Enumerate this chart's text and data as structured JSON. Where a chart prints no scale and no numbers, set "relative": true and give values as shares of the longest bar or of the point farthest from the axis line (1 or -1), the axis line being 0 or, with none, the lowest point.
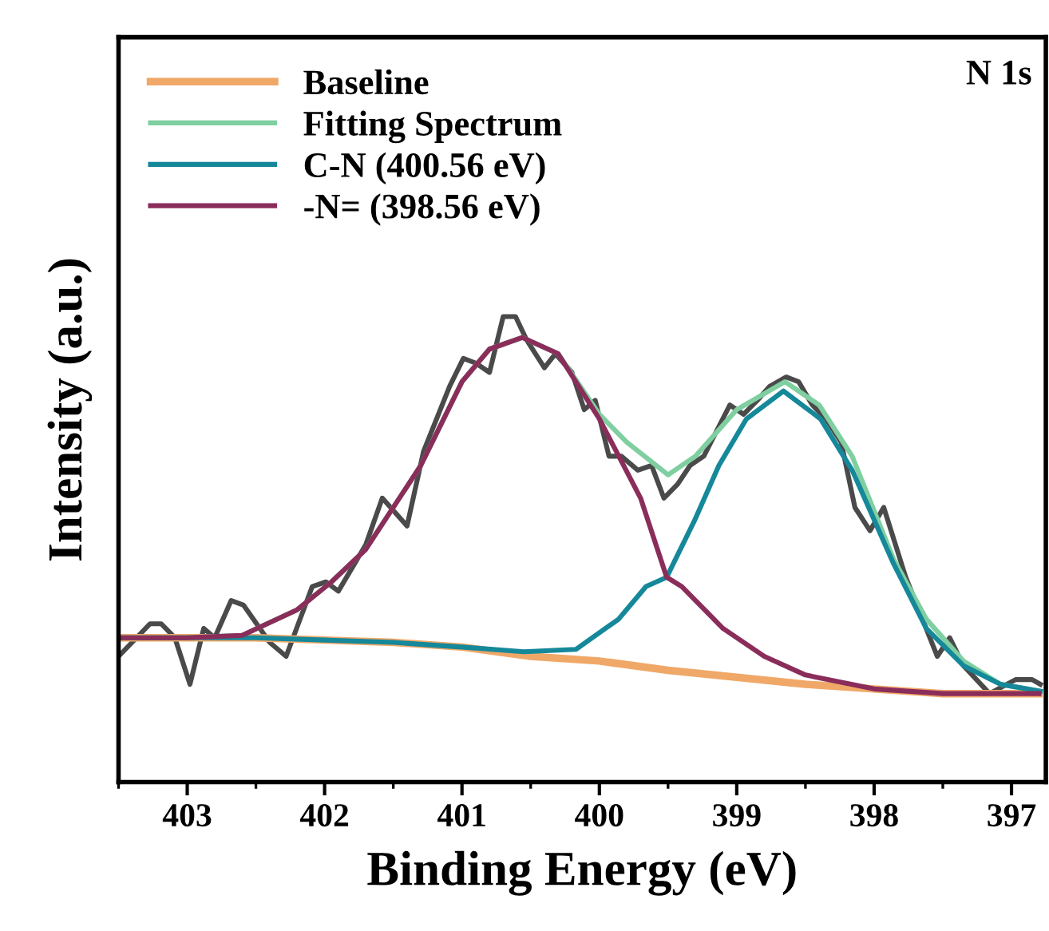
{
  "chart_data": {
    "type": "line",
    "relative": true,
    "xlabel": "Binding Energy (eV)",
    "ylabel": "Intensity (a.u.)",
    "xlim": [
      403.5,
      396.75
    ],
    "xticks": [
      403,
      402,
      401,
      400,
      399,
      398,
      397
    ],
    "legend": "top left",
    "grid": false,
    "annotations": [
      "N 1s"
    ],
    "series": [
      {
        "color": "#4a4a4a",
        "x": [
          403.5,
          403.27,
          403.19,
          403.09,
          402.98,
          402.88,
          402.8,
          402.68,
          402.59,
          402.4,
          402.28,
          402.09,
          401.99,
          401.9,
          401.7,
          401.58,
          401.4,
          401.28,
          401.09,
          400.99,
          400.9,
          400.8,
          400.7,
          400.61,
          400.53,
          400.4,
          400.32,
          400.2,
          400.11,
          400.03,
          399.93,
          399.84,
          399.72,
          399.62,
          399.53,
          399.43,
          399.34,
          399.24,
          399.05,
          398.95,
          398.85,
          398.76,
          398.64,
          398.55,
          398.45,
          398.35,
          398.24,
          398.14,
          398.03,
          397.93,
          397.77,
          397.54,
          397.45,
          397.35,
          397.16,
          396.97,
          396.85,
          396.79
        ],
        "values": [
          0.27,
          0.34,
          0.34,
          0.31,
          0.21,
          0.33,
          0.31,
          0.39,
          0.38,
          0.3,
          0.27,
          0.42,
          0.43,
          0.41,
          0.51,
          0.61,
          0.55,
          0.71,
          0.85,
          0.91,
          0.9,
          0.88,
          1.0,
          1.0,
          0.95,
          0.89,
          0.92,
          0.88,
          0.8,
          0.82,
          0.7,
          0.7,
          0.67,
          0.68,
          0.61,
          0.64,
          0.68,
          0.7,
          0.81,
          0.79,
          0.82,
          0.85,
          0.87,
          0.86,
          0.81,
          0.78,
          0.73,
          0.59,
          0.54,
          0.59,
          0.44,
          0.27,
          0.31,
          0.25,
          0.19,
          0.22,
          0.22,
          0.21
        ]
      },
      {
        "name": "Baseline",
        "color": "#f0a868",
        "x": [
          403.5,
          403,
          402.5,
          402,
          401.5,
          401,
          400.5,
          400,
          399.5,
          399,
          398.5,
          398,
          397.5,
          397,
          396.8
        ],
        "values": [
          0.31,
          0.31,
          0.31,
          0.305,
          0.3,
          0.29,
          0.27,
          0.26,
          0.24,
          0.225,
          0.21,
          0.2,
          0.19,
          0.19,
          0.19
        ]
      },
      {
        "name": "Fitting Spectrum",
        "color": "#7fcfa0",
        "x": [
          403.5,
          403,
          402.6,
          402.2,
          401.95,
          401.7,
          401.3,
          401.0,
          400.8,
          400.56,
          400.3,
          400.0,
          399.8,
          399.5,
          399.3,
          399.0,
          398.65,
          398.4,
          398.16,
          397.86,
          397.62,
          397.35,
          397.08,
          396.79
        ],
        "values": [
          0.31,
          0.31,
          0.315,
          0.37,
          0.43,
          0.5,
          0.68,
          0.86,
          0.93,
          0.955,
          0.92,
          0.79,
          0.73,
          0.66,
          0.7,
          0.8,
          0.86,
          0.81,
          0.7,
          0.48,
          0.35,
          0.26,
          0.21,
          0.195
        ]
      },
      {
        "name": "C-N (400.56 eV)",
        "color": "#15889a",
        "x": [
          403.5,
          403,
          402.5,
          402,
          401.5,
          401,
          400.55,
          400.17,
          399.86,
          399.66,
          399.51,
          399.31,
          399.13,
          398.93,
          398.66,
          398.39,
          398.16,
          397.86,
          397.62,
          397.35,
          397.08,
          396.79
        ],
        "values": [
          0.31,
          0.31,
          0.31,
          0.305,
          0.3,
          0.29,
          0.28,
          0.285,
          0.35,
          0.42,
          0.44,
          0.56,
          0.68,
          0.78,
          0.84,
          0.78,
          0.67,
          0.47,
          0.33,
          0.25,
          0.21,
          0.195
        ]
      },
      {
        "name": "-N= (398.56 eV)",
        "color": "#8b2d5a",
        "x": [
          403.5,
          403,
          402.6,
          402.2,
          401.95,
          401.7,
          401.3,
          401.0,
          400.8,
          400.56,
          400.3,
          400.0,
          399.7,
          399.51,
          399.4,
          399.1,
          398.8,
          398.5,
          398.0,
          397.5,
          396.8
        ],
        "values": [
          0.31,
          0.31,
          0.315,
          0.37,
          0.43,
          0.5,
          0.68,
          0.86,
          0.93,
          0.955,
          0.92,
          0.78,
          0.61,
          0.44,
          0.42,
          0.33,
          0.27,
          0.23,
          0.2,
          0.19,
          0.19
        ]
      }
    ]
  }
}
